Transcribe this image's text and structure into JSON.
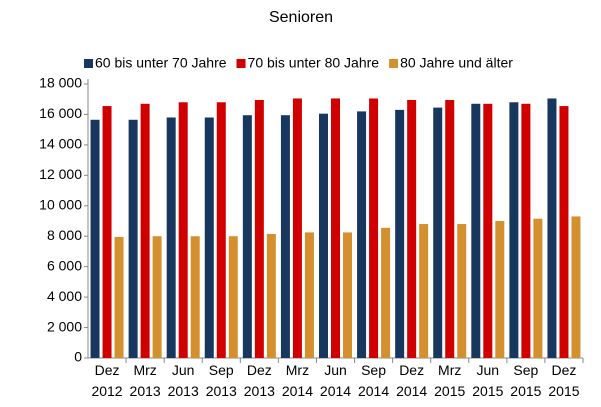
{
  "chart_data": {
    "type": "bar",
    "title": "Senioren",
    "categories": [
      "Dez 2012",
      "Mrz 2013",
      "Jun 2013",
      "Sep 2013",
      "Dez 2013",
      "Mrz 2014",
      "Jun 2014",
      "Sep 2014",
      "Dez 2014",
      "Mrz 2015",
      "Jun 2015",
      "Sep 2015",
      "Dez 2015"
    ],
    "series": [
      {
        "name": "60 bis unter 70 Jahre",
        "color": "#17375e",
        "values": [
          15650,
          15650,
          15800,
          15800,
          15950,
          15950,
          16050,
          16200,
          16300,
          16450,
          16700,
          16800,
          17050
        ]
      },
      {
        "name": "70 bis unter 80 Jahre",
        "color": "#d00000",
        "values": [
          16550,
          16700,
          16800,
          16800,
          16950,
          17050,
          17050,
          17050,
          16950,
          16950,
          16700,
          16700,
          16550
        ]
      },
      {
        "name": "80 Jahre und älter",
        "color": "#d4902e",
        "values": [
          7950,
          8000,
          8000,
          8000,
          8150,
          8250,
          8250,
          8550,
          8800,
          8800,
          9000,
          9150,
          9300
        ]
      }
    ],
    "ylim": [
      0,
      18000
    ],
    "yticks": [
      0,
      {
        "value": 2000,
        "label": "2 000"
      },
      {
        "value": 4000,
        "label": "4 000"
      },
      {
        "value": 6000,
        "label": "6 000"
      },
      {
        "value": 8000,
        "label": "8 000"
      },
      {
        "value": 10000,
        "label": "10 000"
      },
      {
        "value": 12000,
        "label": "12 000"
      },
      {
        "value": 14000,
        "label": "14 000"
      },
      {
        "value": 16000,
        "label": "16 000"
      },
      {
        "value": 18000,
        "label": "18 000"
      }
    ],
    "grid": false,
    "legend": "top"
  }
}
